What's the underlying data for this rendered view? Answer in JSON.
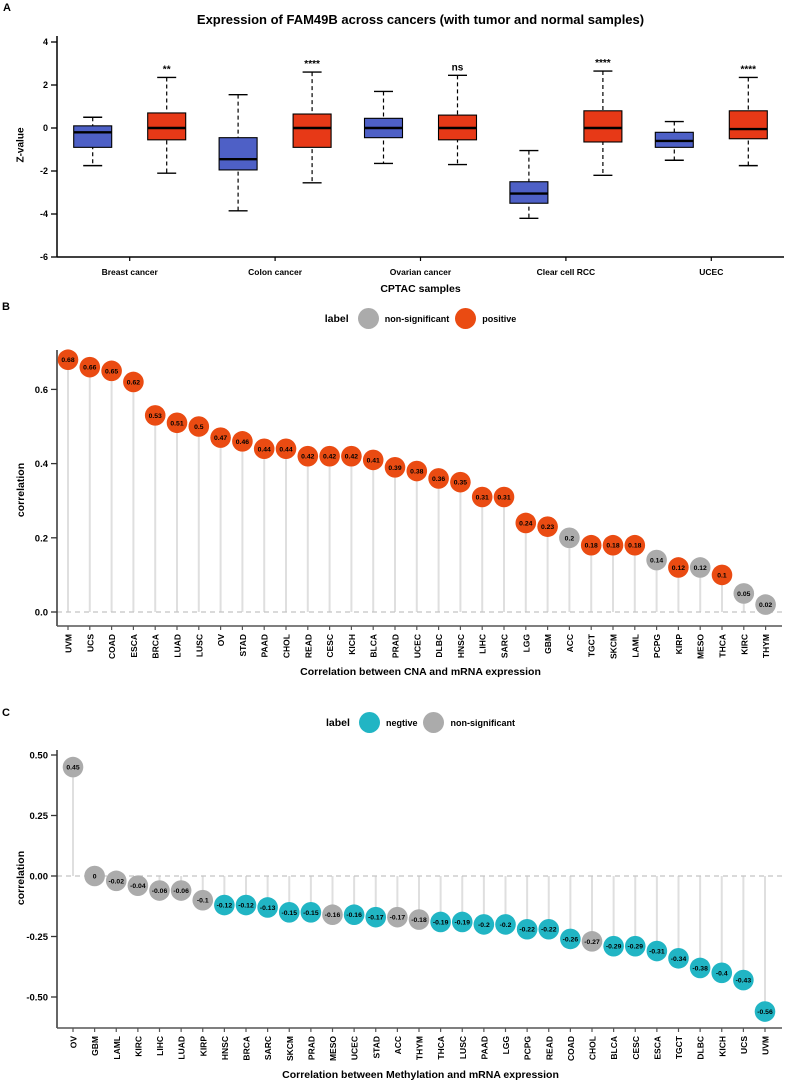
{
  "chart_data": [
    {
      "panel": "A",
      "type": "boxplot",
      "title": "Expression of FAM49B across cancers (with tumor and normal samples)",
      "xlabel": "CPTAC samples",
      "ylabel": "Z-value",
      "yticks": [
        4,
        2,
        0,
        -2,
        -4,
        -6
      ],
      "ylim": [
        -6,
        4.3
      ],
      "series": [
        {
          "name": "normal",
          "color": "#4E60C6"
        },
        {
          "name": "tumor",
          "color": "#E73917"
        }
      ],
      "groups": [
        {
          "name": "Breast cancer",
          "significance": "**",
          "normal": {
            "whisker_low": -1.75,
            "q1": -0.9,
            "median": -0.2,
            "q3": 0.1,
            "whisker_high": 0.5
          },
          "tumor": {
            "whisker_low": -2.1,
            "q1": -0.55,
            "median": 0,
            "q3": 0.7,
            "whisker_high": 2.35
          }
        },
        {
          "name": "Colon cancer",
          "significance": "****",
          "normal": {
            "whisker_low": -3.85,
            "q1": -1.95,
            "median": -1.45,
            "q3": -0.45,
            "whisker_high": 1.55
          },
          "tumor": {
            "whisker_low": -2.55,
            "q1": -0.9,
            "median": 0,
            "q3": 0.65,
            "whisker_high": 2.6
          }
        },
        {
          "name": "Ovarian cancer",
          "significance": "ns",
          "normal": {
            "whisker_low": -1.65,
            "q1": -0.45,
            "median": 0,
            "q3": 0.45,
            "whisker_high": 1.7
          },
          "tumor": {
            "whisker_low": -1.7,
            "q1": -0.55,
            "median": 0,
            "q3": 0.6,
            "whisker_high": 2.45
          }
        },
        {
          "name": "Clear cell RCC",
          "significance": "****",
          "normal": {
            "whisker_low": -4.2,
            "q1": -3.5,
            "median": -3.05,
            "q3": -2.5,
            "whisker_high": -1.05
          },
          "tumor": {
            "whisker_low": -2.2,
            "q1": -0.65,
            "median": 0,
            "q3": 0.8,
            "whisker_high": 2.65
          }
        },
        {
          "name": "UCEC",
          "significance": "****",
          "normal": {
            "whisker_low": -1.5,
            "q1": -0.9,
            "median": -0.6,
            "q3": -0.2,
            "whisker_high": 0.3
          },
          "tumor": {
            "whisker_low": -1.75,
            "q1": -0.5,
            "median": -0.05,
            "q3": 0.8,
            "whisker_high": 2.35
          }
        }
      ]
    },
    {
      "panel": "B",
      "type": "lollipop",
      "xlabel": "Correlation between CNA and mRNA expression",
      "ylabel": "correlation",
      "legend": {
        "title": "label",
        "items": [
          {
            "label": "non-significant",
            "color": "#ABABAB"
          },
          {
            "label": "positive",
            "color": "#EA4B12"
          }
        ]
      },
      "yticks": [
        {
          "v": 0.0,
          "label": "0.0"
        },
        {
          "v": 0.2,
          "label": "0.2"
        },
        {
          "v": 0.4,
          "label": "0.4"
        },
        {
          "v": 0.6,
          "label": "0.6"
        }
      ],
      "stem_color": "#DFDFDF",
      "points": [
        {
          "cat": "UVM",
          "value": 0.68,
          "sig": "positive"
        },
        {
          "cat": "UCS",
          "value": 0.66,
          "sig": "positive"
        },
        {
          "cat": "COAD",
          "value": 0.65,
          "sig": "positive"
        },
        {
          "cat": "ESCA",
          "value": 0.62,
          "sig": "positive"
        },
        {
          "cat": "BRCA",
          "value": 0.53,
          "sig": "positive"
        },
        {
          "cat": "LUAD",
          "value": 0.51,
          "sig": "positive"
        },
        {
          "cat": "LUSC",
          "value": 0.5,
          "sig": "positive"
        },
        {
          "cat": "OV",
          "value": 0.47,
          "sig": "positive"
        },
        {
          "cat": "STAD",
          "value": 0.46,
          "sig": "positive"
        },
        {
          "cat": "PAAD",
          "value": 0.44,
          "sig": "positive"
        },
        {
          "cat": "CHOL",
          "value": 0.44,
          "sig": "positive"
        },
        {
          "cat": "READ",
          "value": 0.42,
          "sig": "positive"
        },
        {
          "cat": "CESC",
          "value": 0.42,
          "sig": "positive"
        },
        {
          "cat": "KICH",
          "value": 0.42,
          "sig": "positive"
        },
        {
          "cat": "BLCA",
          "value": 0.41,
          "sig": "positive"
        },
        {
          "cat": "PRAD",
          "value": 0.39,
          "sig": "positive"
        },
        {
          "cat": "UCEC",
          "value": 0.38,
          "sig": "positive"
        },
        {
          "cat": "DLBC",
          "value": 0.36,
          "sig": "positive"
        },
        {
          "cat": "HNSC",
          "value": 0.35,
          "sig": "positive"
        },
        {
          "cat": "LIHC",
          "value": 0.31,
          "sig": "positive"
        },
        {
          "cat": "SARC",
          "value": 0.31,
          "sig": "positive"
        },
        {
          "cat": "LGG",
          "value": 0.24,
          "sig": "positive"
        },
        {
          "cat": "GBM",
          "value": 0.23,
          "sig": "positive"
        },
        {
          "cat": "ACC",
          "value": 0.2,
          "sig": "non-significant"
        },
        {
          "cat": "TGCT",
          "value": 0.18,
          "sig": "positive"
        },
        {
          "cat": "SKCM",
          "value": 0.18,
          "sig": "positive"
        },
        {
          "cat": "LAML",
          "value": 0.18,
          "sig": "positive"
        },
        {
          "cat": "PCPG",
          "value": 0.14,
          "sig": "non-significant"
        },
        {
          "cat": "KIRP",
          "value": 0.12,
          "sig": "positive"
        },
        {
          "cat": "MESO",
          "value": 0.12,
          "sig": "non-significant"
        },
        {
          "cat": "THCA",
          "value": 0.1,
          "sig": "positive"
        },
        {
          "cat": "KIRC",
          "value": 0.05,
          "sig": "non-significant"
        },
        {
          "cat": "THYM",
          "value": 0.02,
          "sig": "non-significant"
        }
      ]
    },
    {
      "panel": "C",
      "type": "lollipop",
      "xlabel": "Correlation between Methylation and mRNA expression",
      "ylabel": "correlation",
      "legend": {
        "title": "label",
        "items": [
          {
            "label": "negtive",
            "color": "#21B5C4"
          },
          {
            "label": "non-significant",
            "color": "#ABABAB"
          }
        ]
      },
      "yticks": [
        {
          "v": 0.5,
          "label": "0.50"
        },
        {
          "v": 0.25,
          "label": "0.25"
        },
        {
          "v": 0,
          "label": "0.00"
        },
        {
          "v": -0.25,
          "label": "-0.25"
        },
        {
          "v": -0.5,
          "label": "-0.50"
        }
      ],
      "stem_color": "#DFDFDF",
      "points": [
        {
          "cat": "OV",
          "value": 0.45,
          "sig": "non-significant"
        },
        {
          "cat": "GBM",
          "value": 0,
          "sig": "non-significant"
        },
        {
          "cat": "LAML",
          "value": -0.02,
          "sig": "non-significant"
        },
        {
          "cat": "KIRC",
          "value": -0.04,
          "sig": "non-significant"
        },
        {
          "cat": "LIHC",
          "value": -0.06,
          "sig": "non-significant"
        },
        {
          "cat": "LUAD",
          "value": -0.06,
          "sig": "non-significant"
        },
        {
          "cat": "KIRP",
          "value": -0.1,
          "sig": "non-significant"
        },
        {
          "cat": "HNSC",
          "value": -0.12,
          "sig": "negtive"
        },
        {
          "cat": "BRCA",
          "value": -0.12,
          "sig": "negtive"
        },
        {
          "cat": "SARC",
          "value": -0.13,
          "sig": "negtive"
        },
        {
          "cat": "SKCM",
          "value": -0.15,
          "sig": "negtive"
        },
        {
          "cat": "PRAD",
          "value": -0.15,
          "sig": "negtive"
        },
        {
          "cat": "MESO",
          "value": -0.16,
          "sig": "non-significant"
        },
        {
          "cat": "UCEC",
          "value": -0.16,
          "sig": "negtive"
        },
        {
          "cat": "STAD",
          "value": -0.17,
          "sig": "negtive"
        },
        {
          "cat": "ACC",
          "value": -0.17,
          "sig": "non-significant"
        },
        {
          "cat": "THYM",
          "value": -0.18,
          "sig": "non-significant"
        },
        {
          "cat": "THCA",
          "value": -0.19,
          "sig": "negtive"
        },
        {
          "cat": "LUSC",
          "value": -0.19,
          "sig": "negtive"
        },
        {
          "cat": "PAAD",
          "value": -0.2,
          "sig": "negtive"
        },
        {
          "cat": "LGG",
          "value": -0.2,
          "sig": "negtive"
        },
        {
          "cat": "PCPG",
          "value": -0.22,
          "sig": "negtive"
        },
        {
          "cat": "READ",
          "value": -0.22,
          "sig": "negtive"
        },
        {
          "cat": "COAD",
          "value": -0.26,
          "sig": "negtive"
        },
        {
          "cat": "CHOL",
          "value": -0.27,
          "sig": "non-significant"
        },
        {
          "cat": "BLCA",
          "value": -0.29,
          "sig": "negtive"
        },
        {
          "cat": "CESC",
          "value": -0.29,
          "sig": "negtive"
        },
        {
          "cat": "ESCA",
          "value": -0.31,
          "sig": "negtive"
        },
        {
          "cat": "TGCT",
          "value": -0.34,
          "sig": "negtive"
        },
        {
          "cat": "DLBC",
          "value": -0.38,
          "sig": "negtive"
        },
        {
          "cat": "KICH",
          "value": -0.4,
          "sig": "negtive"
        },
        {
          "cat": "UCS",
          "value": -0.43,
          "sig": "negtive"
        },
        {
          "cat": "UVM",
          "value": -0.56,
          "sig": "negtive"
        }
      ]
    }
  ]
}
